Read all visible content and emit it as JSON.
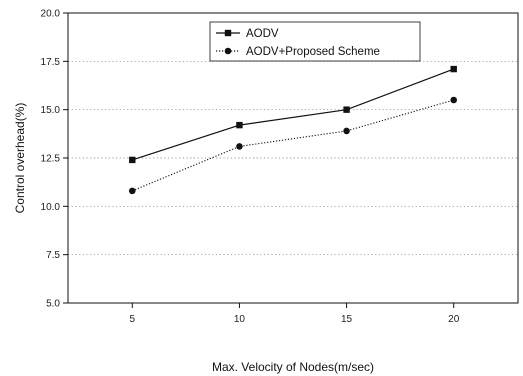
{
  "chart_data": {
    "type": "line",
    "title": "",
    "xlabel": "Max. Velocity of Nodes(m/sec)",
    "ylabel": "Control overhead(%)",
    "x": [
      5,
      10,
      15,
      20
    ],
    "xticks": [
      "5",
      "10",
      "15",
      "20"
    ],
    "xlim": [
      2,
      23
    ],
    "ylim": [
      5.0,
      20.0
    ],
    "yticks": [
      "5.0",
      "7.5",
      "10.0",
      "12.5",
      "15.0",
      "17.5",
      "20.0"
    ],
    "grid": true,
    "legend_position": "top-center",
    "series": [
      {
        "name": "AODV",
        "marker": "square",
        "line_style": "solid",
        "color": "#111111",
        "values": [
          12.4,
          14.2,
          15.0,
          17.1
        ]
      },
      {
        "name": "AODV+Proposed Scheme",
        "marker": "circle",
        "line_style": "dotted",
        "color": "#111111",
        "values": [
          10.8,
          13.1,
          13.9,
          15.5
        ]
      }
    ]
  }
}
